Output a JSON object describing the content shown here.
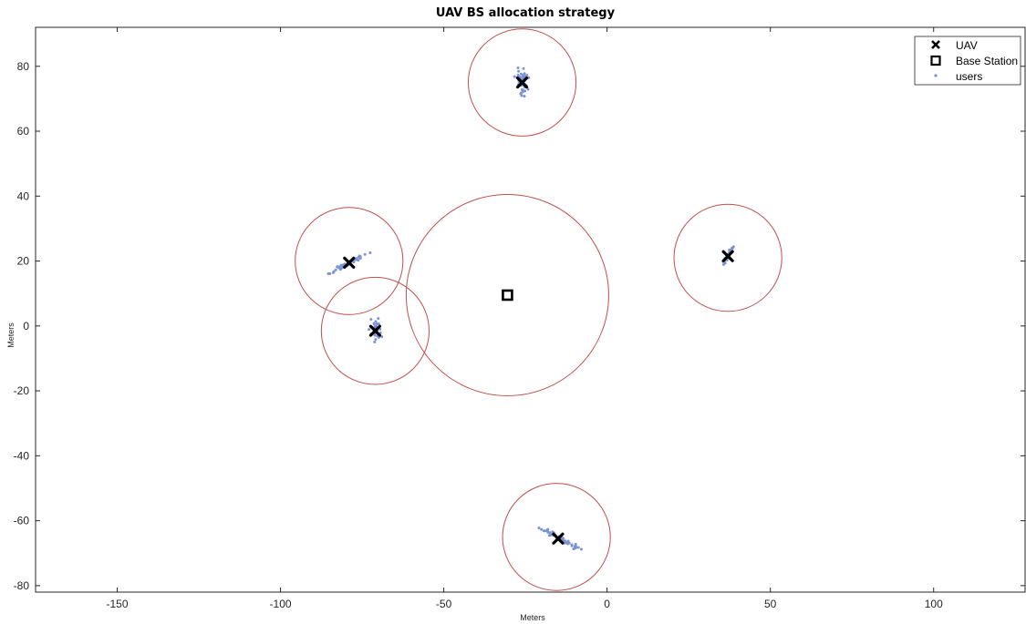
{
  "chart_data": {
    "type": "scatter",
    "title": "UAV BS allocation strategy",
    "xlabel": "Meters",
    "ylabel": "Meters",
    "xlim": [
      -175,
      128
    ],
    "ylim": [
      -82,
      92
    ],
    "xticks": [
      -150,
      -100,
      -50,
      0,
      50,
      100
    ],
    "yticks": [
      -80,
      -60,
      -40,
      -20,
      0,
      20,
      40,
      60,
      80
    ],
    "grid": false,
    "legend_position": "top-right",
    "legend": [
      "UAV",
      "Base Station",
      "users"
    ],
    "series": [
      {
        "name": "UAV",
        "marker": "x",
        "color": "#000000",
        "points": [
          {
            "x": -26,
            "y": 75
          },
          {
            "x": -79,
            "y": 19.5
          },
          {
            "x": -71,
            "y": -1.5
          },
          {
            "x": 37,
            "y": 21.5
          },
          {
            "x": -15,
            "y": -65.5
          }
        ]
      },
      {
        "name": "Base Station",
        "marker": "square",
        "color": "#000000",
        "points": [
          {
            "x": -30.5,
            "y": 9.5
          }
        ]
      },
      {
        "name": "users",
        "marker": "dot",
        "color": "#7b93d6",
        "clusters": [
          {
            "cx": -26,
            "cy": 75,
            "sx": 0.9,
            "sy": 2.0,
            "n": 55
          },
          {
            "cx": -79,
            "cy": 19.5,
            "sx": 2.0,
            "sy": 0.8,
            "n": 45,
            "slope": 0.55
          },
          {
            "cx": -71,
            "cy": -1.0,
            "sx": 0.8,
            "sy": 1.6,
            "n": 35
          },
          {
            "cx": 37,
            "cy": 21.5,
            "sx": 0.7,
            "sy": 1.5,
            "n": 30,
            "slope": 1.6
          },
          {
            "cx": -14.5,
            "cy": -65.5,
            "sx": 2.6,
            "sy": 0.9,
            "n": 50,
            "slope": -0.55
          }
        ]
      }
    ],
    "coverage_circles": {
      "color": "#c0504d",
      "circles": [
        {
          "cx": -26,
          "cy": 75,
          "r": 16.5
        },
        {
          "cx": -79,
          "cy": 20,
          "r": 16.5
        },
        {
          "cx": -71,
          "cy": -1.5,
          "r": 16.5
        },
        {
          "cx": 37,
          "cy": 21,
          "r": 16.5
        },
        {
          "cx": -15.5,
          "cy": -65,
          "r": 16.5
        },
        {
          "cx": -30.5,
          "cy": 9.5,
          "r": 31
        }
      ]
    }
  }
}
